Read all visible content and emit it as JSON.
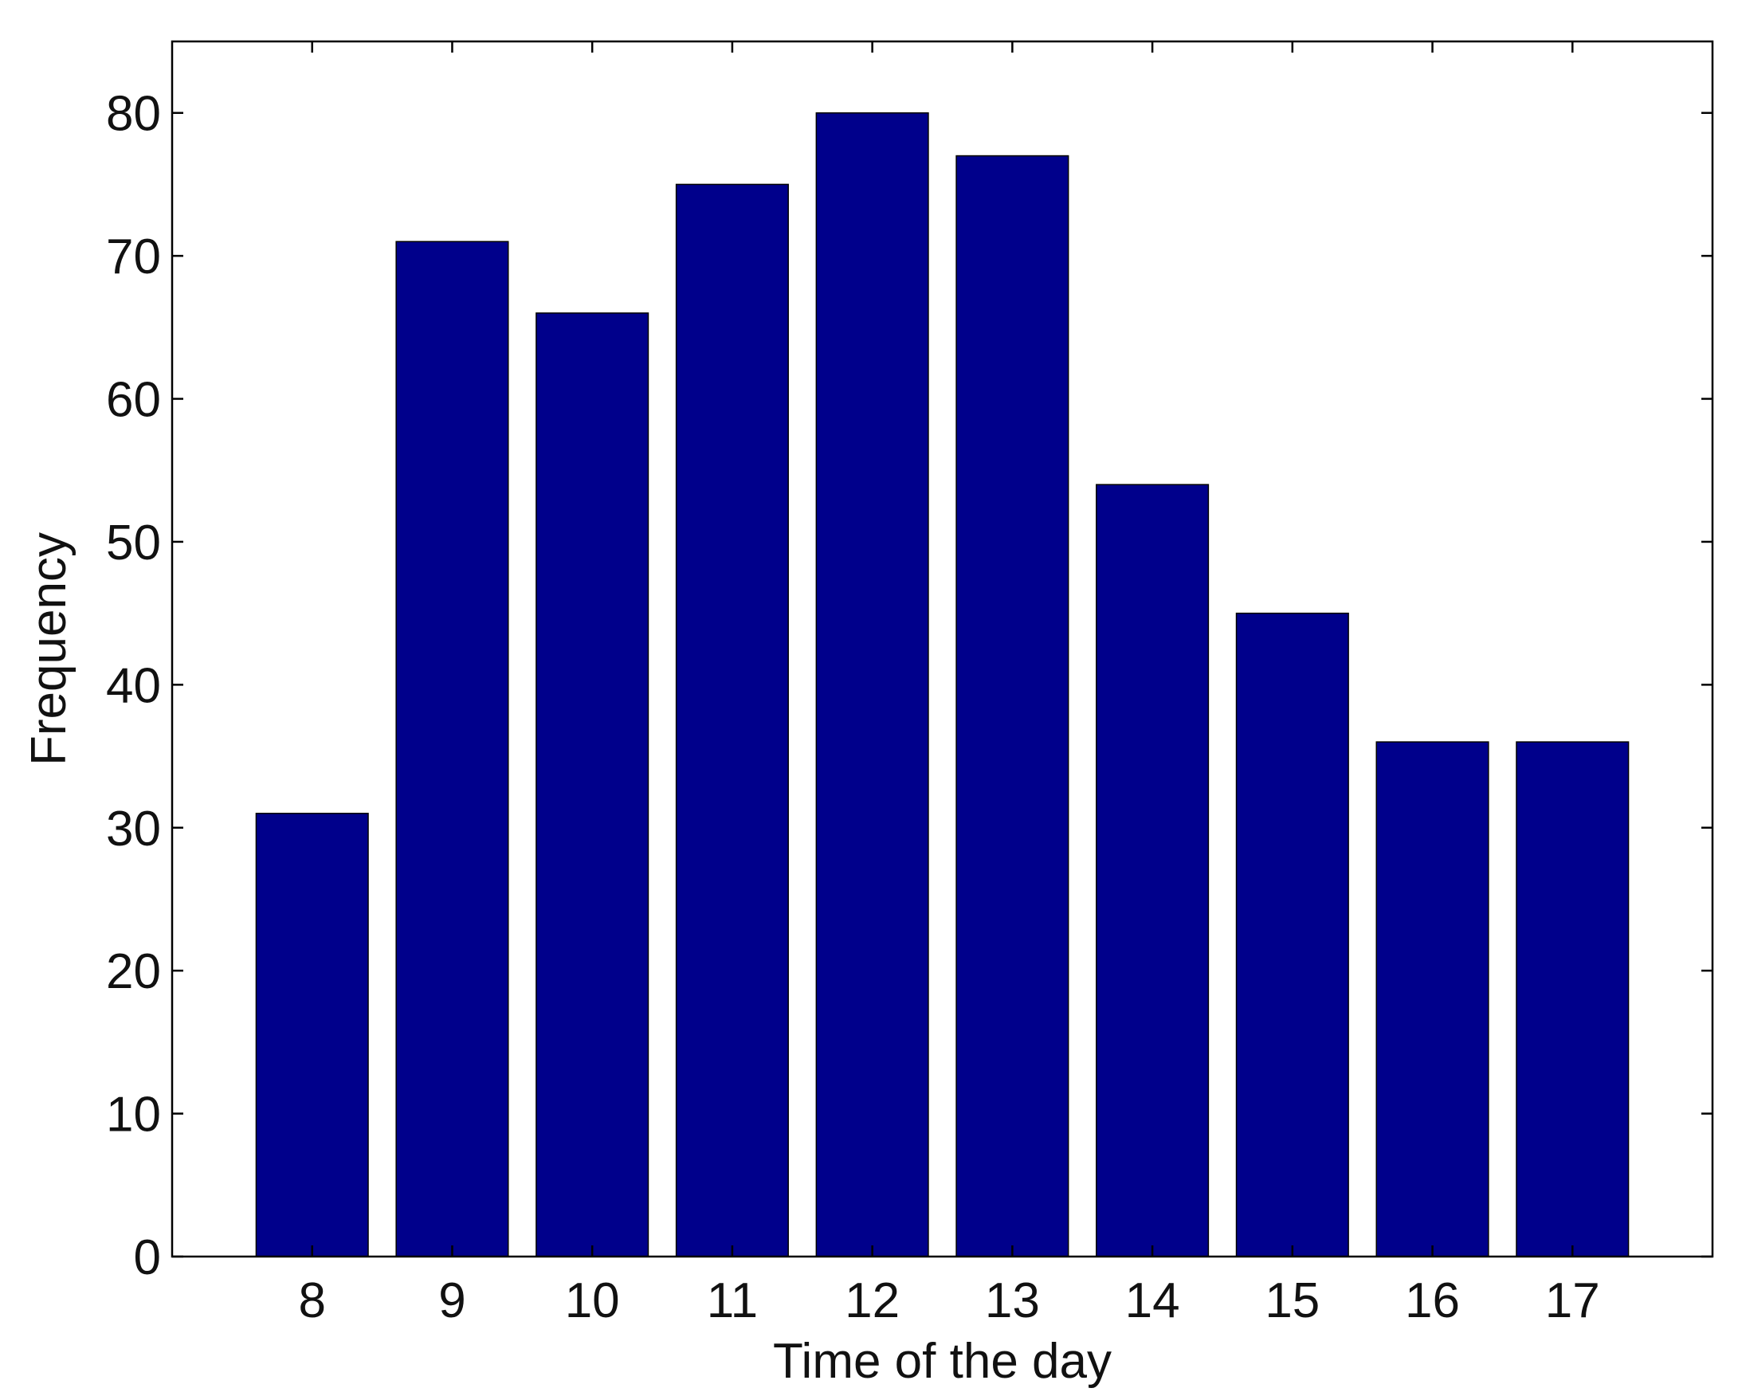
{
  "chart_data": {
    "type": "bar",
    "title": "",
    "xlabel": "Time of the day",
    "ylabel": "Frequency",
    "categories": [
      "8",
      "9",
      "10",
      "11",
      "12",
      "13",
      "14",
      "15",
      "16",
      "17"
    ],
    "values": [
      31,
      71,
      66,
      75,
      80,
      77,
      54,
      45,
      36,
      36
    ],
    "ylim": [
      0,
      85
    ],
    "yticks": [
      "0",
      "10",
      "20",
      "30",
      "40",
      "50",
      "60",
      "70",
      "80"
    ],
    "grid": false,
    "legend": "none",
    "bar_color": "#00008B",
    "edge_color": "#000000"
  }
}
